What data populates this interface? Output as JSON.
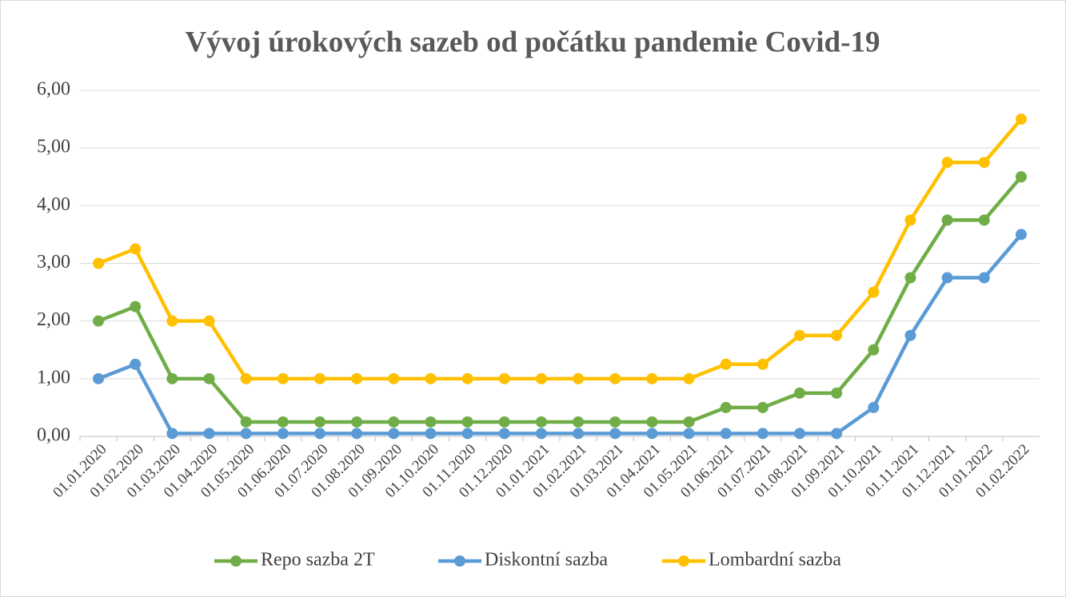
{
  "chart_data": {
    "type": "line",
    "title": "Vývoj úrokových sazeb od počátku pandemie Covid-19",
    "categories": [
      "01.01.2020",
      "01.02.2020",
      "01.03.2020",
      "01.04.2020",
      "01.05.2020",
      "01.06.2020",
      "01.07.2020",
      "01.08.2020",
      "01.09.2020",
      "01.10.2020",
      "01.11.2020",
      "01.12.2020",
      "01.01.2021",
      "01.02.2021",
      "01.03.2021",
      "01.04.2021",
      "01.05.2021",
      "01.06.2021",
      "01.07.2021",
      "01.08.2021",
      "01.09.2021",
      "01.10.2021",
      "01.11.2021",
      "01.12.2021",
      "01.01.2022",
      "01.02.2022"
    ],
    "series": [
      {
        "name": "Repo sazba 2T",
        "color": "#70ad47",
        "values": [
          2,
          2.25,
          1,
          1,
          0.25,
          0.25,
          0.25,
          0.25,
          0.25,
          0.25,
          0.25,
          0.25,
          0.25,
          0.25,
          0.25,
          0.25,
          0.25,
          0.5,
          0.5,
          0.75,
          0.75,
          1.5,
          2.75,
          3.75,
          3.75,
          4.5
        ]
      },
      {
        "name": "Diskontní sazba",
        "color": "#5b9bd5",
        "values": [
          1,
          1.25,
          0.05,
          0.05,
          0.05,
          0.05,
          0.05,
          0.05,
          0.05,
          0.05,
          0.05,
          0.05,
          0.05,
          0.05,
          0.05,
          0.05,
          0.05,
          0.05,
          0.05,
          0.05,
          0.05,
          0.5,
          1.75,
          2.75,
          2.75,
          3.5
        ]
      },
      {
        "name": "Lombardní sazba",
        "color": "#ffc000",
        "values": [
          3,
          3.25,
          2,
          2,
          1,
          1,
          1,
          1,
          1,
          1,
          1,
          1,
          1,
          1,
          1,
          1,
          1,
          1.25,
          1.25,
          1.75,
          1.75,
          2.5,
          3.75,
          4.75,
          4.75,
          5.5
        ]
      }
    ],
    "ylim": [
      0,
      6
    ],
    "yticks": [
      {
        "value": 0,
        "label": "0,00"
      },
      {
        "value": 1,
        "label": "1,00"
      },
      {
        "value": 2,
        "label": "2,00"
      },
      {
        "value": 3,
        "label": "3,00"
      },
      {
        "value": 4,
        "label": "4,00"
      },
      {
        "value": 5,
        "label": "5,00"
      },
      {
        "value": 6,
        "label": "6,00"
      }
    ],
    "grid": true,
    "legend": "bottom"
  }
}
